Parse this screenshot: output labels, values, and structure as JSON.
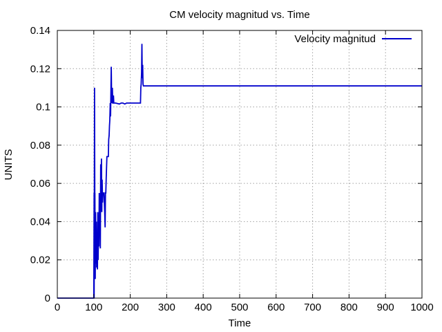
{
  "chart_data": {
    "type": "line",
    "title": "CM velocity magnitud vs. Time",
    "xlabel": "Time",
    "ylabel": "UNITS",
    "xlim": [
      0,
      1000
    ],
    "ylim": [
      0,
      0.14
    ],
    "xticks": [
      0,
      100,
      200,
      300,
      400,
      500,
      600,
      700,
      800,
      900,
      1000
    ],
    "yticks": [
      0,
      0.02,
      0.04,
      0.06,
      0.08,
      0.1,
      0.12,
      0.14
    ],
    "xtick_labels": [
      "0",
      "100",
      "200",
      "300",
      "400",
      "500",
      "600",
      "700",
      "800",
      "900",
      "1000"
    ],
    "ytick_labels": [
      "0",
      "0.02",
      "0.04",
      "0.06",
      "0.08",
      "0.1",
      "0.12",
      "0.14"
    ],
    "grid": true,
    "legend_position": "top-right",
    "series": [
      {
        "name": "Velocity magnitud",
        "color": "#0000cc",
        "x": [
          0,
          100,
          101,
          101,
          102,
          103,
          103,
          104,
          105,
          106,
          107,
          108,
          109,
          110,
          111,
          112,
          113,
          114,
          115,
          116,
          117,
          118,
          119,
          120,
          121,
          122,
          123,
          124,
          125,
          126,
          127,
          128,
          130,
          131,
          132,
          133,
          134,
          136,
          137,
          138,
          140,
          141,
          142,
          143,
          144,
          145,
          146,
          148,
          149,
          150,
          151,
          152,
          153,
          154,
          155,
          156,
          160,
          170,
          175,
          180,
          185,
          190,
          195,
          200,
          210,
          220,
          228,
          229,
          230,
          231,
          232,
          233,
          234,
          235,
          236,
          240,
          300,
          400,
          500,
          600,
          700,
          800,
          900,
          1000
        ],
        "y": [
          0,
          0,
          0.055,
          0,
          0.11,
          0.03,
          0.055,
          0.01,
          0.045,
          0.018,
          0.04,
          0.016,
          0.03,
          0.015,
          0.045,
          0.02,
          0.04,
          0.027,
          0.055,
          0.035,
          0.045,
          0.026,
          0.07,
          0.055,
          0.073,
          0.045,
          0.062,
          0.05,
          0.055,
          0.055,
          0.055,
          0.055,
          0.045,
          0.037,
          0.055,
          0.055,
          0.063,
          0.074,
          0.074,
          0.074,
          0.074,
          0.083,
          0.085,
          0.09,
          0.093,
          0.102,
          0.095,
          0.121,
          0.102,
          0.104,
          0.11,
          0.102,
          0.102,
          0.106,
          0.102,
          0.102,
          0.102,
          0.1015,
          0.102,
          0.102,
          0.1015,
          0.102,
          0.102,
          0.102,
          0.102,
          0.102,
          0.102,
          0.11,
          0.112,
          0.118,
          0.133,
          0.115,
          0.122,
          0.112,
          0.111,
          0.111,
          0.111,
          0.111,
          0.111,
          0.111,
          0.111,
          0.111,
          0.111,
          0.111
        ]
      }
    ]
  }
}
